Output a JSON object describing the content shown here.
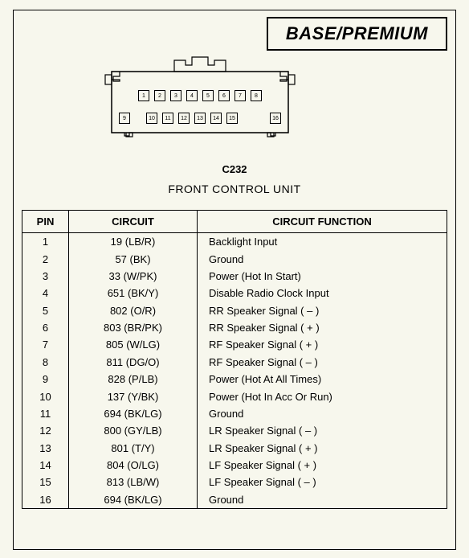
{
  "title": "BASE/PREMIUM",
  "connector_code": "C232",
  "subtitle": "FRONT CONTROL UNIT",
  "table": {
    "headers": {
      "pin": "PIN",
      "circuit": "CIRCUIT",
      "func": "CIRCUIT FUNCTION"
    },
    "rows": [
      {
        "pin": "1",
        "circuit": "19 (LB/R)",
        "func": "Backlight Input"
      },
      {
        "pin": "2",
        "circuit": "57 (BK)",
        "func": "Ground"
      },
      {
        "pin": "3",
        "circuit": "33 (W/PK)",
        "func": "Power (Hot In Start)"
      },
      {
        "pin": "4",
        "circuit": "651 (BK/Y)",
        "func": "Disable Radio Clock Input"
      },
      {
        "pin": "5",
        "circuit": "802 (O/R)",
        "func": "RR Speaker Signal ( – )"
      },
      {
        "pin": "6",
        "circuit": "803 (BR/PK)",
        "func": "RR Speaker Signal ( + )"
      },
      {
        "pin": "7",
        "circuit": "805 (W/LG)",
        "func": "RF Speaker Signal ( + )"
      },
      {
        "pin": "8",
        "circuit": "811 (DG/O)",
        "func": "RF Speaker Signal ( – )"
      },
      {
        "pin": "9",
        "circuit": "828 (P/LB)",
        "func": "Power (Hot At All Times)"
      },
      {
        "pin": "10",
        "circuit": "137 (Y/BK)",
        "func": "Power (Hot In Acc Or Run)"
      },
      {
        "pin": "11",
        "circuit": "694 (BK/LG)",
        "func": "Ground"
      },
      {
        "pin": "12",
        "circuit": "800 (GY/LB)",
        "func": "LR Speaker Signal ( – )"
      },
      {
        "pin": "13",
        "circuit": "801 (T/Y)",
        "func": "LR Speaker Signal ( + )"
      },
      {
        "pin": "14",
        "circuit": "804 (O/LG)",
        "func": "LF Speaker Signal ( + )"
      },
      {
        "pin": "15",
        "circuit": "813 (LB/W)",
        "func": "LF Speaker Signal ( – )"
      },
      {
        "pin": "16",
        "circuit": "694 (BK/LG)",
        "func": "Ground"
      }
    ]
  },
  "connector": {
    "top_row": [
      "1",
      "2",
      "3",
      "4",
      "5",
      "6",
      "7",
      "8"
    ],
    "bottom_row_left": "9",
    "bottom_row_mid": [
      "10",
      "11",
      "12",
      "13",
      "14",
      "15"
    ],
    "bottom_row_right": "16",
    "stroke": "#000000",
    "fill": "#f7f7ed",
    "box_size": 13
  },
  "colors": {
    "background": "#f7f7ed",
    "line": "#000000"
  }
}
